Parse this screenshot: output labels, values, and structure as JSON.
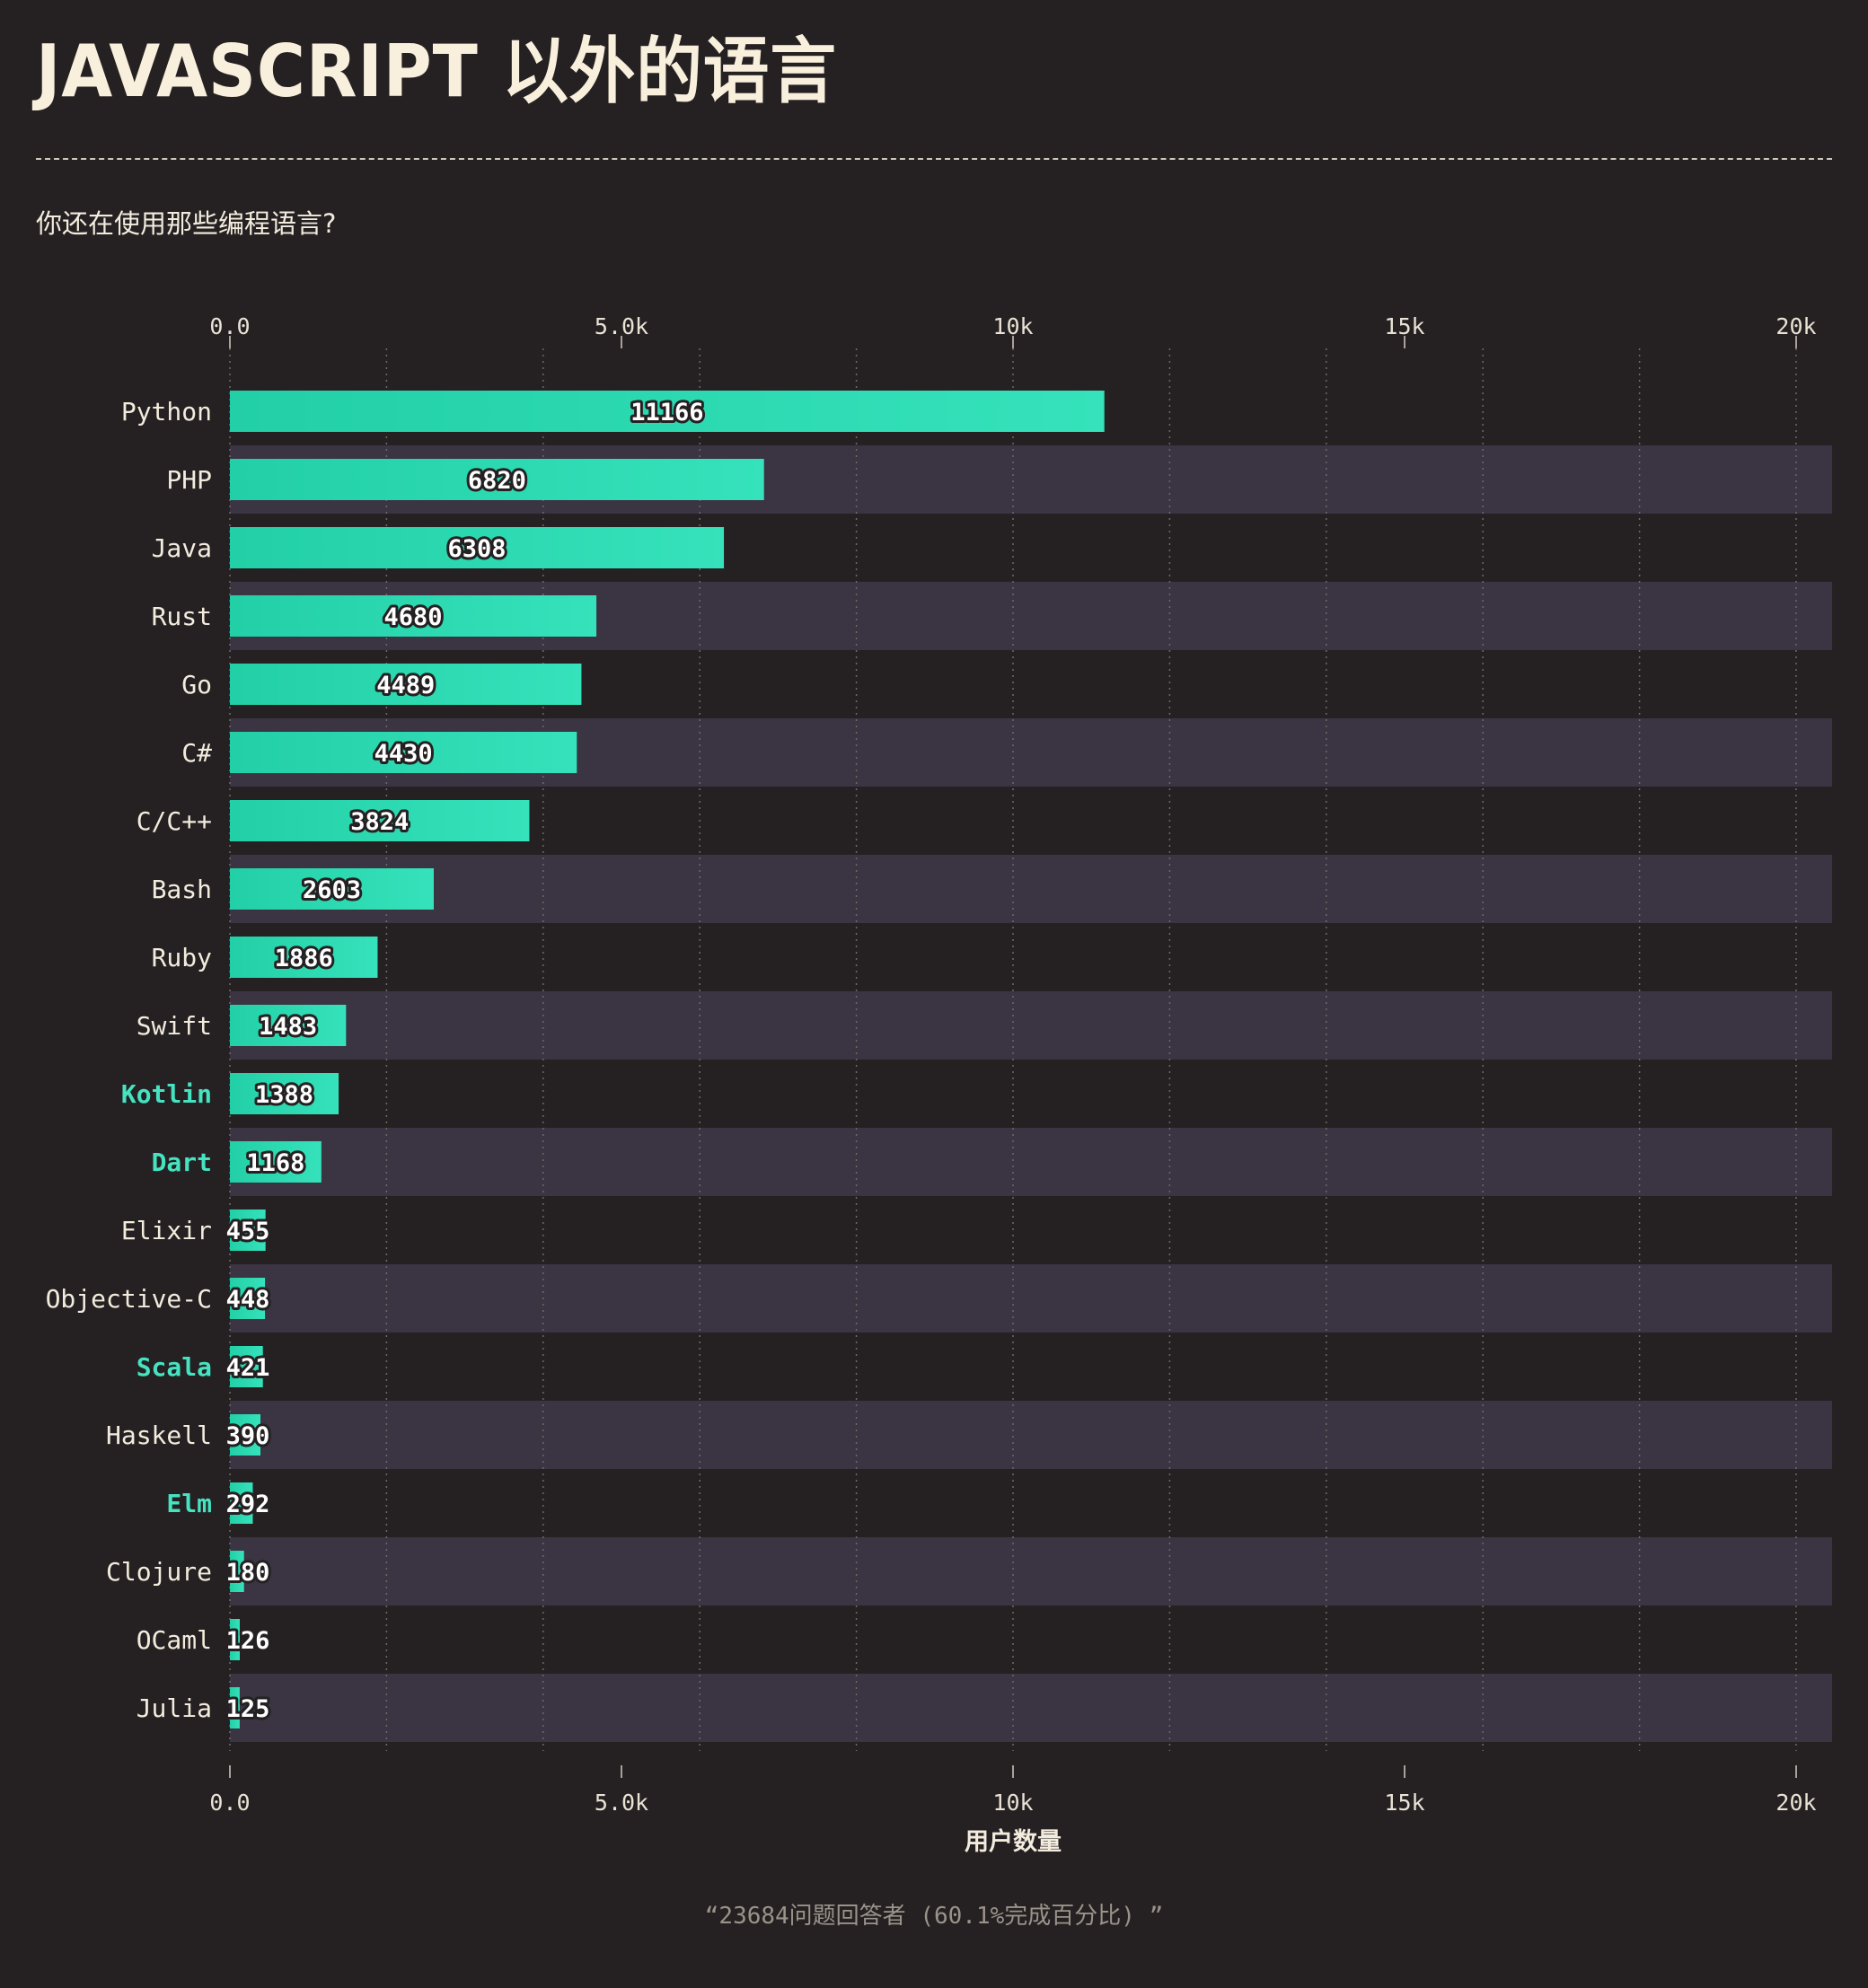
{
  "header": {
    "title": "JAVASCRIPT 以外的语言",
    "subtitle": "你还在使用那些编程语言?"
  },
  "footer": {
    "note": "“23684问题回答者 (60.1%完成百分比) ”"
  },
  "colors": {
    "background": "#252122",
    "band": "#3a3443",
    "bar_start": "#22cfa6",
    "bar_end": "#35e2bb",
    "highlight_label": "#45e3c1",
    "text": "#f3ecde",
    "muted": "#9a938a"
  },
  "chart_data": {
    "type": "bar",
    "orientation": "horizontal",
    "title": "JAVASCRIPT 以外的语言",
    "subtitle": "你还在使用那些编程语言?",
    "xlabel": "用户数量",
    "xlim": [
      0,
      20500
    ],
    "xticks": [
      0,
      5000,
      10000,
      15000,
      20000
    ],
    "xtick_labels": [
      "0.0",
      "5.0k",
      "10k",
      "15k",
      "20k"
    ],
    "grid": "vertical dotted lines every 2000",
    "categories": [
      "Python",
      "PHP",
      "Java",
      "Rust",
      "Go",
      "C#",
      "C/C++",
      "Bash",
      "Ruby",
      "Swift",
      "Kotlin",
      "Dart",
      "Elixir",
      "Objective-C",
      "Scala",
      "Haskell",
      "Elm",
      "Clojure",
      "OCaml",
      "Julia"
    ],
    "values": [
      11166,
      6820,
      6308,
      4680,
      4489,
      4430,
      3824,
      2603,
      1886,
      1483,
      1388,
      1168,
      455,
      448,
      421,
      390,
      292,
      180,
      126,
      125
    ],
    "highlighted": [
      "Kotlin",
      "Dart",
      "Scala",
      "Elm"
    ]
  }
}
